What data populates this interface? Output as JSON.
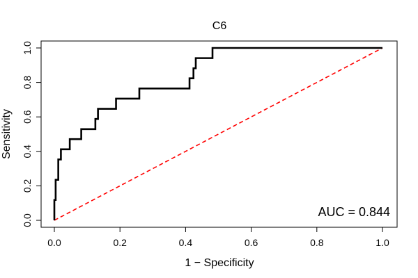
{
  "chart_data": {
    "type": "line",
    "title": "C6",
    "xlabel": "1 − Specificity",
    "ylabel": "Sensitivity",
    "xlim": [
      0,
      1
    ],
    "ylim": [
      0,
      1
    ],
    "xticks": [
      0.0,
      0.2,
      0.4,
      0.6,
      0.8,
      1.0
    ],
    "xtick_labels": [
      "0.0",
      "0.2",
      "0.4",
      "0.6",
      "0.8",
      "1.0"
    ],
    "yticks": [
      0.0,
      0.2,
      0.4,
      0.6,
      0.8,
      1.0
    ],
    "ytick_labels": [
      "0.0",
      "0.2",
      "0.4",
      "0.6",
      "0.8",
      "1.0"
    ],
    "grid": false,
    "annotation": "AUC = 0.844",
    "series": [
      {
        "name": "ROC curve",
        "color": "#000000",
        "x": [
          0.0,
          0.0,
          0.004,
          0.004,
          0.012,
          0.012,
          0.02,
          0.02,
          0.047,
          0.047,
          0.082,
          0.082,
          0.125,
          0.125,
          0.133,
          0.133,
          0.188,
          0.188,
          0.259,
          0.259,
          0.412,
          0.412,
          0.424,
          0.424,
          0.431,
          0.431,
          0.482,
          0.482,
          1.0
        ],
        "y": [
          0.0,
          0.118,
          0.118,
          0.235,
          0.235,
          0.353,
          0.353,
          0.412,
          0.412,
          0.471,
          0.471,
          0.529,
          0.529,
          0.588,
          0.588,
          0.647,
          0.647,
          0.706,
          0.706,
          0.765,
          0.765,
          0.824,
          0.824,
          0.882,
          0.882,
          0.941,
          0.941,
          1.0,
          1.0
        ]
      },
      {
        "name": "chance line",
        "color": "#ff0000",
        "dashed": true,
        "x": [
          0,
          1
        ],
        "y": [
          0,
          1
        ]
      }
    ]
  }
}
